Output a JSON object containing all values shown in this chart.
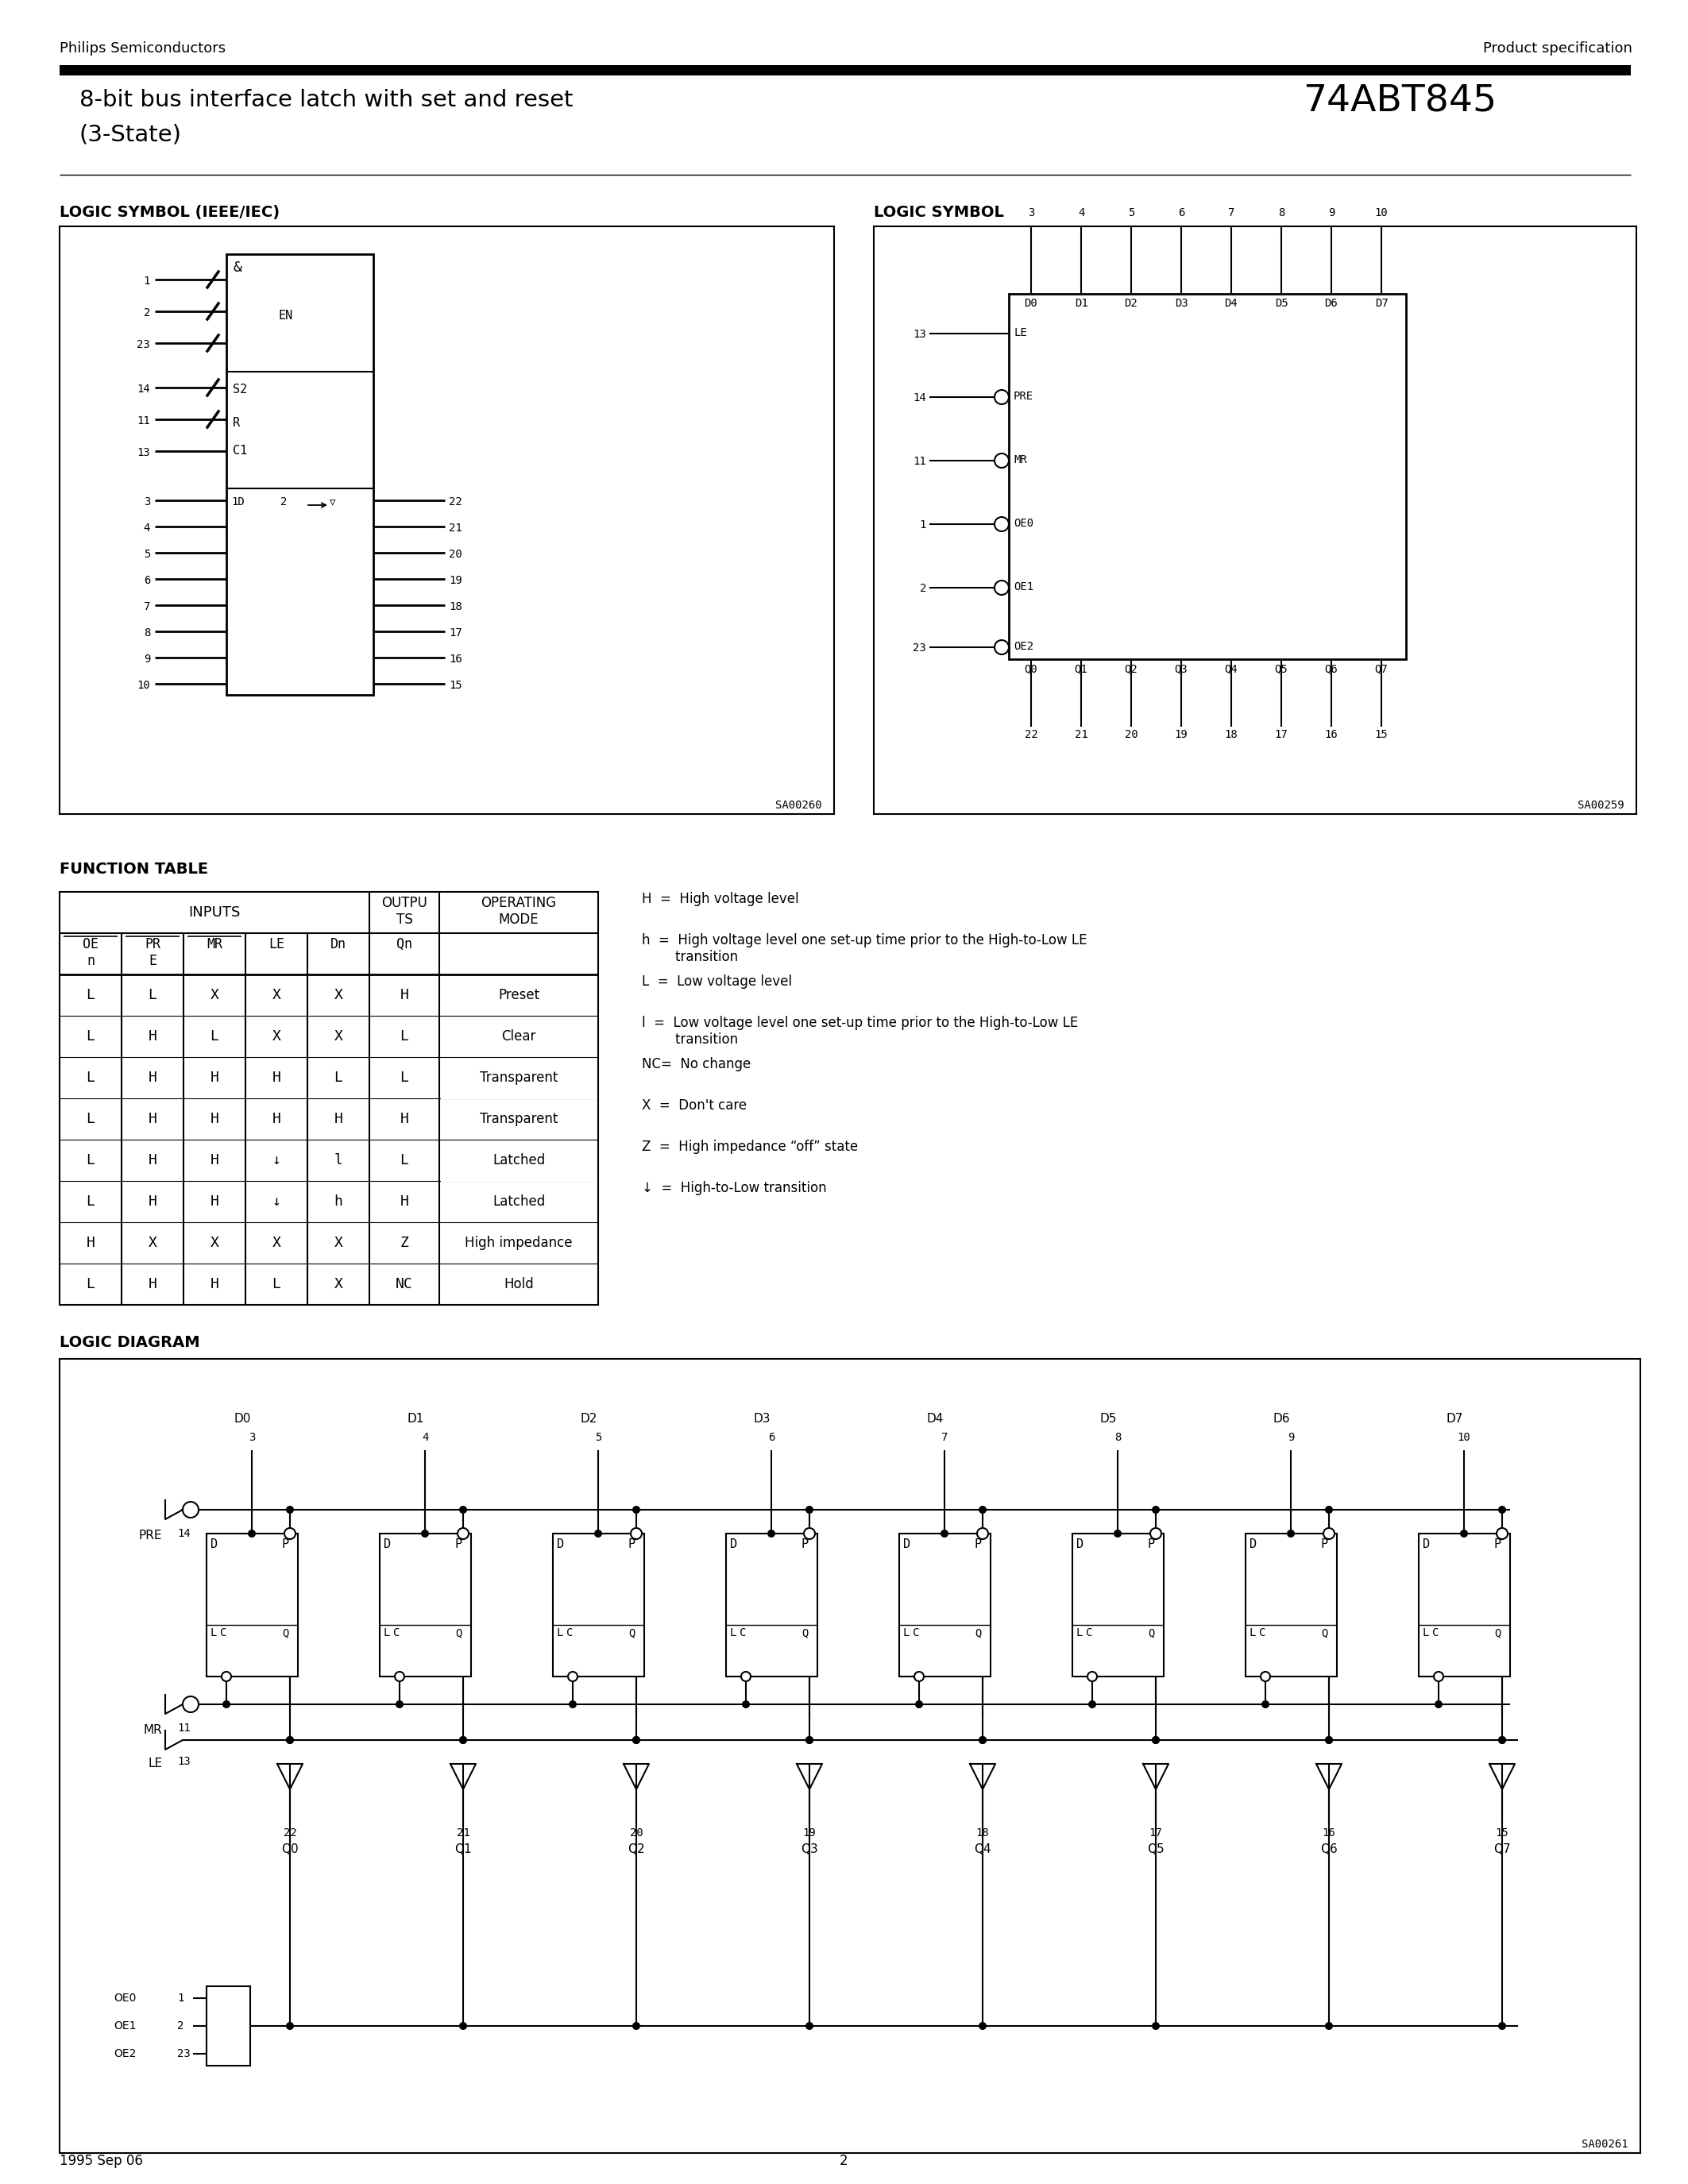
{
  "title_left": "8-bit bus interface latch with set and reset",
  "title_left2": "(3-State)",
  "title_right": "74ABT845",
  "header_left": "Philips Semiconductors",
  "header_right": "Product specification",
  "footer_left": "1995 Sep 06",
  "footer_center": "2",
  "s1_title": "LOGIC SYMBOL (IEEE/IEC)",
  "s2_title": "LOGIC SYMBOL",
  "s3_title": "FUNCTION TABLE",
  "s4_title": "LOGIC DIAGRAM",
  "ft_rows": [
    [
      "L",
      "L",
      "X",
      "X",
      "X",
      "H",
      "Preset"
    ],
    [
      "L",
      "H",
      "L",
      "X",
      "X",
      "L",
      "Clear"
    ],
    [
      "L",
      "H",
      "H",
      "H",
      "L",
      "L",
      "Transparent"
    ],
    [
      "L",
      "H",
      "H",
      "H",
      "H",
      "H",
      "Transparent"
    ],
    [
      "L",
      "H",
      "H",
      "↓",
      "l",
      "L",
      "Latched"
    ],
    [
      "L",
      "H",
      "H",
      "↓",
      "h",
      "H",
      "Latched"
    ],
    [
      "H",
      "X",
      "X",
      "X",
      "X",
      "Z",
      "High impedance"
    ],
    [
      "L",
      "H",
      "H",
      "L",
      "X",
      "NC",
      "Hold"
    ]
  ],
  "d_names": [
    "D0",
    "D1",
    "D2",
    "D3",
    "D4",
    "D5",
    "D6",
    "D7"
  ],
  "d_pins": [
    "3",
    "4",
    "5",
    "6",
    "7",
    "8",
    "9",
    "10"
  ],
  "q_names": [
    "Q0",
    "Q1",
    "Q2",
    "Q3",
    "Q4",
    "Q5",
    "Q6",
    "Q7"
  ],
  "q_pins": [
    "22",
    "21",
    "20",
    "19",
    "18",
    "17",
    "16",
    "15"
  ]
}
